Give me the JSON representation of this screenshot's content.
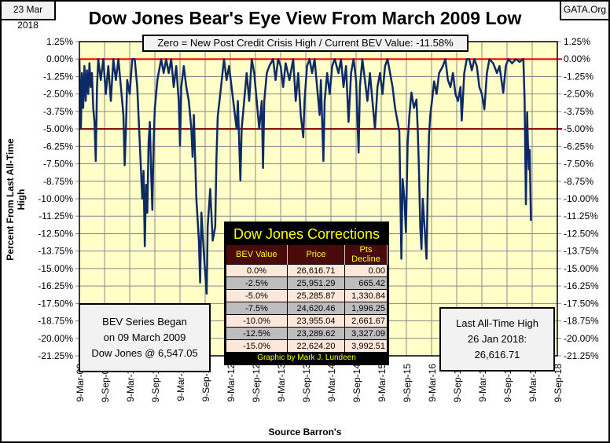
{
  "header": {
    "date": "23 Mar 2018",
    "site": "GATA.Org",
    "title": "Dow Jones Bear's Eye View From March 2009 Low"
  },
  "zero_note": "Zero = New Post Credit Crisis High / Current BEV Value:  -11.58%",
  "began_box": {
    "line1": "BEV Series Began",
    "line2": "on 09 March 2009",
    "line3": "Dow Jones @ 6,547.05"
  },
  "last_box": {
    "line1": "Last All-Time High",
    "line2": "26 Jan 2018:",
    "line3": "26,616.71"
  },
  "corrections": {
    "title": "Dow Jones Corrections",
    "headers": [
      "BEV Value",
      "Price",
      "Pts Decline"
    ],
    "rows": [
      [
        "0.0%",
        "26,616.71",
        "0.00"
      ],
      [
        "-2.5%",
        "25,951.29",
        "665.42"
      ],
      [
        "-5.0%",
        "25,285.87",
        "1,330.84"
      ],
      [
        "-7.5%",
        "24,620.46",
        "1,996.25"
      ],
      [
        "-10.0%",
        "23,955.04",
        "2,661.67"
      ],
      [
        "-12.5%",
        "23,289.62",
        "3,327.09"
      ],
      [
        "-15.0%",
        "22,624.20",
        "3,992.51"
      ]
    ],
    "footer": "Graphic by Mark J. Lundeen"
  },
  "chart_data": {
    "type": "line",
    "title": "Dow Jones Bear's Eye View From March 2009 Low",
    "xlabel": "Source Barron's",
    "ylabel": "Percent From Last All-Time High",
    "ylim": [
      -21.25,
      1.25
    ],
    "yticks": [
      "1.25%",
      "0.00%",
      "-1.25%",
      "-2.50%",
      "-3.75%",
      "-5.00%",
      "-6.25%",
      "-7.50%",
      "-8.75%",
      "-10.00%",
      "-11.25%",
      "-12.50%",
      "-13.75%",
      "-15.00%",
      "-16.25%",
      "-17.50%",
      "-18.75%",
      "-20.00%",
      "-21.25%"
    ],
    "xticks": [
      "9-Mar-09",
      "9-Sep-09",
      "9-Mar-10",
      "9-Sep-10",
      "9-Mar-11",
      "9-Sep-11",
      "9-Mar-12",
      "9-Sep-12",
      "9-Mar-13",
      "9-Sep-13",
      "9-Mar-14",
      "9-Sep-14",
      "9-Mar-15",
      "9-Sep-15",
      "9-Mar-16",
      "9-Sep-16",
      "9-Mar-17",
      "9-Sep-17",
      "9-Mar-18",
      "9-Sep-18"
    ],
    "x_unit": "half-years since 9-Mar-09",
    "reference_lines": [
      {
        "value": 0,
        "color": "#ff0000"
      },
      {
        "value": -5,
        "color": "#7a0000"
      }
    ],
    "series": [
      {
        "name": "BEV",
        "color": "#0d2a66",
        "points": [
          [
            0,
            0
          ],
          [
            0.03,
            -3
          ],
          [
            0.06,
            -5
          ],
          [
            0.1,
            -1
          ],
          [
            0.15,
            -3.5
          ],
          [
            0.2,
            -0.5
          ],
          [
            0.25,
            -3
          ],
          [
            0.3,
            -0.8
          ],
          [
            0.35,
            -2.5
          ],
          [
            0.4,
            -0.3
          ],
          [
            0.45,
            -2
          ],
          [
            0.5,
            -1
          ],
          [
            0.55,
            -3.5
          ],
          [
            0.6,
            -4.5
          ],
          [
            0.65,
            -7.3
          ],
          [
            0.7,
            -2
          ],
          [
            0.75,
            0
          ],
          [
            0.85,
            -1.5
          ],
          [
            0.95,
            0
          ],
          [
            1.05,
            -2.5
          ],
          [
            1.15,
            -0.5
          ],
          [
            1.25,
            -3
          ],
          [
            1.35,
            0
          ],
          [
            1.45,
            -1.5
          ],
          [
            1.55,
            0
          ],
          [
            1.65,
            -2
          ],
          [
            1.75,
            -4
          ],
          [
            1.8,
            -7.6
          ],
          [
            1.85,
            -5
          ],
          [
            1.9,
            -1.5
          ],
          [
            2.0,
            -2.5
          ],
          [
            2.1,
            0
          ],
          [
            2.2,
            0
          ],
          [
            2.3,
            -2
          ],
          [
            2.4,
            -6
          ],
          [
            2.5,
            -10
          ],
          [
            2.55,
            -8
          ],
          [
            2.6,
            -13.4
          ],
          [
            2.65,
            -9
          ],
          [
            2.7,
            -11
          ],
          [
            2.75,
            -6
          ],
          [
            2.8,
            -4.5
          ],
          [
            2.85,
            -8
          ],
          [
            2.9,
            -10.8
          ],
          [
            2.95,
            -6
          ],
          [
            3.0,
            -3.5
          ],
          [
            3.1,
            -1.5
          ],
          [
            3.25,
            0
          ],
          [
            3.35,
            -1
          ],
          [
            3.45,
            0
          ],
          [
            3.55,
            -1
          ],
          [
            3.65,
            0
          ],
          [
            3.75,
            -2
          ],
          [
            3.85,
            -0.5
          ],
          [
            3.95,
            -3
          ],
          [
            4.0,
            -6.2
          ],
          [
            4.05,
            -2
          ],
          [
            4.15,
            -0.5
          ],
          [
            4.25,
            -2
          ],
          [
            4.35,
            -3
          ],
          [
            4.45,
            -5
          ],
          [
            4.5,
            -7
          ],
          [
            4.55,
            -4
          ],
          [
            4.65,
            -10
          ],
          [
            4.75,
            -13
          ],
          [
            4.8,
            -16
          ],
          [
            4.85,
            -11
          ],
          [
            4.95,
            -14
          ],
          [
            5.06,
            -16.8
          ],
          [
            5.1,
            -12
          ],
          [
            5.2,
            -9.3
          ],
          [
            5.3,
            -13
          ],
          [
            5.4,
            -12
          ],
          [
            5.45,
            -7
          ],
          [
            5.5,
            -4.1
          ],
          [
            5.6,
            -2.5
          ],
          [
            5.75,
            0
          ],
          [
            5.85,
            -1.5
          ],
          [
            5.95,
            -0.5
          ],
          [
            6.05,
            -2
          ],
          [
            6.15,
            -3.5
          ],
          [
            6.25,
            -5
          ],
          [
            6.3,
            -3
          ],
          [
            6.4,
            -8.7
          ],
          [
            6.45,
            -5
          ],
          [
            6.55,
            -3
          ],
          [
            6.65,
            -1
          ],
          [
            6.75,
            -3
          ],
          [
            6.85,
            0
          ],
          [
            6.95,
            -1
          ],
          [
            7.05,
            -3
          ],
          [
            7.15,
            -5
          ],
          [
            7.25,
            -3
          ],
          [
            7.3,
            -7.8
          ],
          [
            7.35,
            -3
          ],
          [
            7.45,
            -1
          ],
          [
            7.55,
            -0.5
          ],
          [
            7.7,
            0
          ],
          [
            7.8,
            -1.5
          ],
          [
            7.9,
            0
          ],
          [
            8.0,
            -0.5
          ],
          [
            8.1,
            -2
          ],
          [
            8.2,
            -0.3
          ],
          [
            8.35,
            -1.5
          ],
          [
            8.5,
            0
          ],
          [
            8.6,
            -3
          ],
          [
            8.7,
            -1
          ],
          [
            8.8,
            -4
          ],
          [
            8.9,
            -5.6
          ],
          [
            8.95,
            -3
          ],
          [
            9.05,
            -0.5
          ],
          [
            9.15,
            0
          ],
          [
            9.25,
            -1
          ],
          [
            9.35,
            0
          ],
          [
            9.45,
            -2
          ],
          [
            9.55,
            -4
          ],
          [
            9.6,
            -1.5
          ],
          [
            9.7,
            -7.3
          ],
          [
            9.75,
            -3
          ],
          [
            9.85,
            -1
          ],
          [
            9.95,
            -2.5
          ],
          [
            10.05,
            -0.5
          ],
          [
            10.15,
            0
          ],
          [
            10.3,
            -1
          ],
          [
            10.4,
            0
          ],
          [
            10.5,
            -2
          ],
          [
            10.6,
            -0.5
          ],
          [
            10.7,
            -4.5
          ],
          [
            10.8,
            -1
          ],
          [
            10.9,
            0
          ],
          [
            11.0,
            -1.5
          ],
          [
            11.1,
            -6.7
          ],
          [
            11.15,
            -2
          ],
          [
            11.25,
            0
          ],
          [
            11.35,
            -1.5
          ],
          [
            11.45,
            -3
          ],
          [
            11.55,
            -1
          ],
          [
            11.65,
            -3
          ],
          [
            11.75,
            -5
          ],
          [
            11.85,
            -2
          ],
          [
            11.95,
            -1
          ],
          [
            12.05,
            -2.5
          ],
          [
            12.15,
            -0.5
          ],
          [
            12.25,
            0
          ],
          [
            12.35,
            -1
          ],
          [
            12.45,
            -2
          ],
          [
            12.55,
            -3.5
          ],
          [
            12.65,
            -4.5
          ],
          [
            12.72,
            -5.2
          ],
          [
            12.8,
            -14.3
          ],
          [
            12.85,
            -8.6
          ],
          [
            12.92,
            -10
          ],
          [
            12.98,
            -12.4
          ],
          [
            13.05,
            -6
          ],
          [
            13.12,
            -4
          ],
          [
            13.2,
            -2.4
          ],
          [
            13.3,
            -3.5
          ],
          [
            13.4,
            -2.9
          ],
          [
            13.45,
            -5
          ],
          [
            13.5,
            -8
          ],
          [
            13.55,
            -12
          ],
          [
            13.6,
            -13.6
          ],
          [
            13.65,
            -10
          ],
          [
            13.72,
            -12
          ],
          [
            13.8,
            -14.3
          ],
          [
            13.85,
            -9
          ],
          [
            13.9,
            -5.4
          ],
          [
            13.95,
            -4
          ],
          [
            14.05,
            -2.5
          ],
          [
            14.1,
            -1.6
          ],
          [
            14.2,
            -2.5
          ],
          [
            14.3,
            -1
          ],
          [
            14.45,
            -0.5
          ],
          [
            14.55,
            0
          ],
          [
            14.65,
            -1.5
          ],
          [
            14.75,
            -2
          ],
          [
            14.85,
            -1
          ],
          [
            14.95,
            -2.5
          ],
          [
            15.05,
            -3
          ],
          [
            15.15,
            -2
          ],
          [
            15.2,
            -4.4
          ],
          [
            15.3,
            -1
          ],
          [
            15.4,
            0
          ],
          [
            15.5,
            0
          ],
          [
            15.6,
            -0.8
          ],
          [
            15.7,
            0
          ],
          [
            15.8,
            -0.5
          ],
          [
            15.9,
            -2
          ],
          [
            16.0,
            -2.5
          ],
          [
            16.1,
            -3.6
          ],
          [
            16.2,
            -1
          ],
          [
            16.3,
            0
          ],
          [
            16.45,
            -0.3
          ],
          [
            16.6,
            -1
          ],
          [
            16.7,
            -0.5
          ],
          [
            16.85,
            -2.4
          ],
          [
            16.95,
            -0.5
          ],
          [
            17.05,
            0
          ],
          [
            17.2,
            -0.3
          ],
          [
            17.35,
            0
          ],
          [
            17.5,
            -0.2
          ],
          [
            17.65,
            0
          ],
          [
            17.7,
            -3
          ],
          [
            17.75,
            -10.4
          ],
          [
            17.8,
            -3.8
          ],
          [
            17.83,
            -6
          ],
          [
            17.87,
            -7.9
          ],
          [
            17.9,
            -6.5
          ],
          [
            17.95,
            -11.58
          ]
        ]
      }
    ]
  }
}
